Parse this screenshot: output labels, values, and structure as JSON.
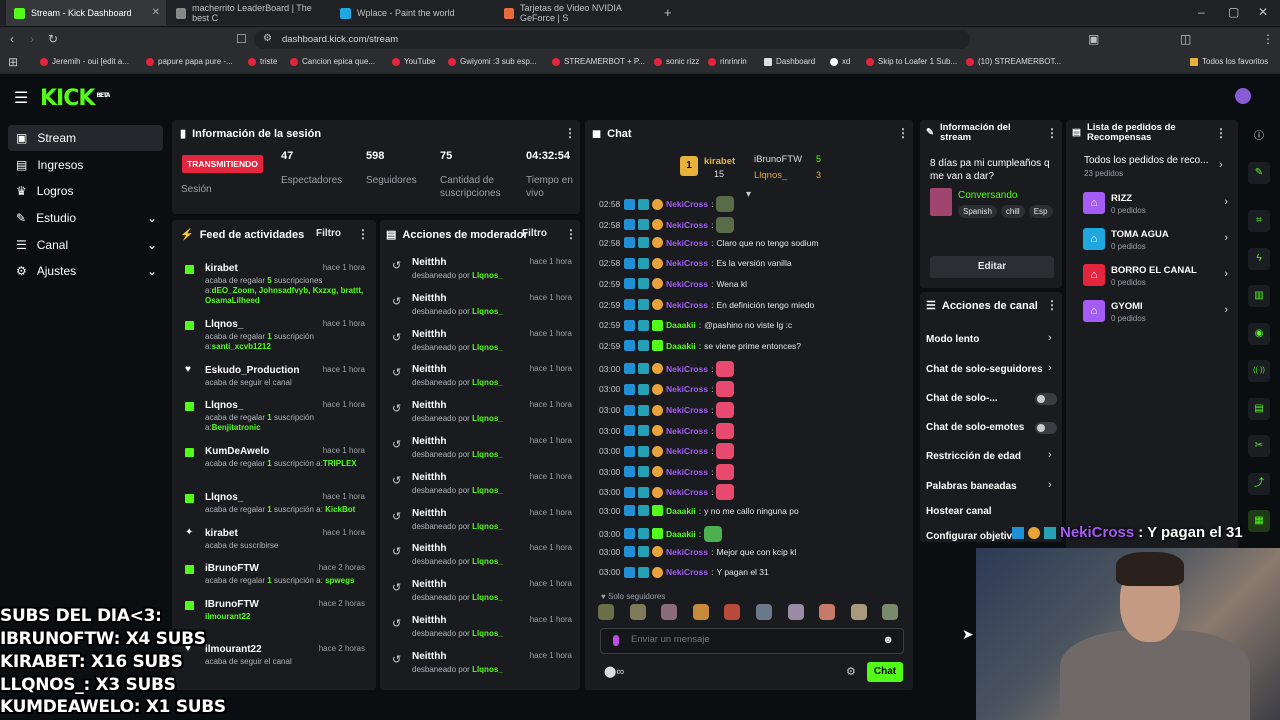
{
  "browser": {
    "tabs": [
      {
        "title": "Stream - Kick Dashboard",
        "active": true
      },
      {
        "title": "macherrito LeaderBoard | The best C",
        "active": false
      },
      {
        "title": "Wplace - Paint the world",
        "active": false
      },
      {
        "title": "Tarjetas de Video NVIDIA GeForce | S",
        "active": false
      }
    ],
    "url": "dashboard.kick.com/stream",
    "bookmarks": [
      "Jeremih - oui [edit a...",
      "papure papa pure -...",
      "triste",
      "Cancion epica que...",
      "YouTube",
      "Gwiyomi :3 sub esp...",
      "STREAMERBOT + P...",
      "sonic rizz",
      "rinrinrin",
      "Dashboard",
      "xd",
      "Skip to Loafer 1 Sub...",
      "(10) STREAMERBOT...",
      "Todos los favoritos"
    ]
  },
  "header": {
    "logo": "KICK",
    "logo_badge": "BETA"
  },
  "sidebar": {
    "items": [
      {
        "label": "Stream",
        "icon": "stream-icon",
        "active": true
      },
      {
        "label": "Ingresos",
        "icon": "revenue-icon"
      },
      {
        "label": "Logros",
        "icon": "trophy-icon"
      },
      {
        "label": "Estudio",
        "icon": "studio-icon",
        "expand": true
      },
      {
        "label": "Canal",
        "icon": "channel-icon",
        "expand": true
      },
      {
        "label": "Ajustes",
        "icon": "settings-icon",
        "expand": true
      }
    ]
  },
  "session": {
    "title": "Información de la sesión",
    "live_badge": "TRANSMITIENDO",
    "live_label": "Sesión",
    "stats": [
      {
        "value": "47",
        "label": "Espectadores"
      },
      {
        "value": "598",
        "label": "Seguidores"
      },
      {
        "value": "75",
        "label": "Cantidad de suscripciones"
      },
      {
        "value": "04:32:54",
        "label": "Tiempo en vivo"
      }
    ]
  },
  "activity": {
    "title": "Feed de actividades",
    "filter": "Filtro",
    "items": [
      {
        "name": "kirabet",
        "time": "hace 1 hora",
        "pre": "acaba de regalar ",
        "hl": "5",
        "post": " suscripciones a:",
        "targets": "dEO_Zoom, Johnsadfvyb, Kxzxg, brattt, OsamaLilheed"
      },
      {
        "name": "Llqnos_",
        "time": "hace 1 hora",
        "pre": "acaba de regalar ",
        "hl": "1",
        "post": " suscripción a:",
        "targets": "santi_xcvb1212"
      },
      {
        "name": "Eskudo_Production",
        "time": "hace 1 hora",
        "pre": "acaba de seguir el canal",
        "hl": "",
        "post": "",
        "targets": ""
      },
      {
        "name": "Llqnos_",
        "time": "hace 1 hora",
        "pre": "acaba de regalar ",
        "hl": "1",
        "post": " suscripción a:",
        "targets": "Benjitatronic"
      },
      {
        "name": "KumDeAwelo",
        "time": "hace 1 hora",
        "pre": "acaba de regalar ",
        "hl": "1",
        "post": " suscripción a:",
        "targets": "TRIPLEX"
      },
      {
        "name": "Llqnos_",
        "time": "hace 1 hora",
        "pre": "acaba de regalar ",
        "hl": "1",
        "post": " suscripción a: ",
        "targets": "KickBot"
      },
      {
        "name": "kirabet",
        "time": "hace 1 hora",
        "pre": "acaba de suscribirse",
        "hl": "",
        "post": "",
        "targets": ""
      },
      {
        "name": "iBrunoFTW",
        "time": "hace 2 horas",
        "pre": "acaba de regalar ",
        "hl": "1",
        "post": " suscripción a: ",
        "targets": "spwegs"
      },
      {
        "name": "IBrunoFTW",
        "time": "hace 2 horas",
        "pre": "",
        "hl": "",
        "post": "",
        "targets": "ilmourant22"
      },
      {
        "name": "ilmourant22",
        "time": "hace 2 horas",
        "pre": "acaba de seguir el canal",
        "hl": "",
        "post": "",
        "targets": ""
      }
    ]
  },
  "moderator": {
    "title": "Acciones de moderador",
    "filter": "Filtro",
    "name": "Neitthh",
    "action": "desbaneado por ",
    "by": "Llqnos_",
    "time": "hace 1 hora",
    "count": 12
  },
  "chat": {
    "title": "Chat",
    "pinned": [
      {
        "name": "kirabet",
        "count": "15"
      },
      {
        "name": "iBrunoFTW",
        "count": "5"
      },
      {
        "name": "Llqnos_",
        "count": "3"
      }
    ],
    "messages": [
      {
        "time": "02:58",
        "user": "NekiCross",
        "color": "#a55bf6",
        "text": "",
        "emote": "frog"
      },
      {
        "time": "02:58",
        "user": "NekiCross",
        "color": "#a55bf6",
        "text": "",
        "emote": "frog"
      },
      {
        "time": "02:58",
        "user": "NekiCross",
        "color": "#a55bf6",
        "text": "Claro que no tengo sodium"
      },
      {
        "time": "02:58",
        "user": "NekiCross",
        "color": "#a55bf6",
        "text": "Es la versión vanilla"
      },
      {
        "time": "02:59",
        "user": "NekiCross",
        "color": "#a55bf6",
        "text": "Wena kl"
      },
      {
        "time": "02:59",
        "user": "NekiCross",
        "color": "#a55bf6",
        "text": "En definición tengo miedo"
      },
      {
        "time": "02:59",
        "user": "Daaakii",
        "color": "#53fc18",
        "text": "@pashino no viste lg :c"
      },
      {
        "time": "02:59",
        "user": "Daaakii",
        "color": "#53fc18",
        "text": "se viene prime entonces?"
      },
      {
        "time": "03:00",
        "user": "NekiCross",
        "color": "#a55bf6",
        "text": "",
        "emote": "heart"
      },
      {
        "time": "03:00",
        "user": "NekiCross",
        "color": "#a55bf6",
        "text": "",
        "emote": "heart"
      },
      {
        "time": "03:00",
        "user": "NekiCross",
        "color": "#a55bf6",
        "text": "",
        "emote": "heart"
      },
      {
        "time": "03:00",
        "user": "NekiCross",
        "color": "#a55bf6",
        "text": "",
        "emote": "heart"
      },
      {
        "time": "03:00",
        "user": "NekiCross",
        "color": "#a55bf6",
        "text": "",
        "emote": "heart"
      },
      {
        "time": "03:00",
        "user": "NekiCross",
        "color": "#a55bf6",
        "text": "",
        "emote": "heart"
      },
      {
        "time": "03:00",
        "user": "NekiCross",
        "color": "#a55bf6",
        "text": "",
        "emote": "heart"
      },
      {
        "time": "03:00",
        "user": "Daaakii",
        "color": "#53fc18",
        "text": "y no me callo ninguna po"
      },
      {
        "time": "03:00",
        "user": "Daaakii",
        "color": "#53fc18",
        "text": "",
        "emote": "pepe"
      },
      {
        "time": "03:00",
        "user": "NekiCross",
        "color": "#a55bf6",
        "text": "Mejor que con kcip kl"
      },
      {
        "time": "03:00",
        "user": "NekiCross",
        "color": "#a55bf6",
        "text": "Y pagan el 31"
      }
    ],
    "followers_only": "Solo seguidores",
    "input_placeholder": "Enviar un mensaje",
    "send_label": "Chat"
  },
  "stream_info": {
    "title": "Información del stream",
    "stream_title": "8 días pa mi cumpleaños q me van a dar?",
    "category": "Conversando",
    "tags": [
      "Spanish",
      "chill",
      "Esp"
    ],
    "edit_label": "Editar"
  },
  "channel_actions": {
    "title": "Acciones de canal",
    "items": [
      {
        "label": "Modo lento",
        "kind": "chevron"
      },
      {
        "label": "Chat de solo-seguidores",
        "kind": "chevron"
      },
      {
        "label": "Chat de solo-...",
        "kind": "toggle"
      },
      {
        "label": "Chat de solo-emotes",
        "kind": "toggle"
      },
      {
        "label": "Restricción de edad",
        "kind": "chevron"
      },
      {
        "label": "Palabras baneadas",
        "kind": "chevron"
      },
      {
        "label": "Hostear canal",
        "kind": "none"
      },
      {
        "label": "Configurar objetivo",
        "kind": "none"
      }
    ]
  },
  "rewards": {
    "title": "Lista de pedidos de Recompensas",
    "all_label": "Todos los pedidos de reco...",
    "all_count": "23 pedidos",
    "items": [
      {
        "name": "RIZZ",
        "count": "0 pedidos",
        "color": "#a55bf6"
      },
      {
        "name": "TOMA AGUA",
        "count": "0 pedidos",
        "color": "#1ea7e1"
      },
      {
        "name": "BORRO EL CANAL",
        "count": "0 pedidos",
        "color": "#e3253d"
      },
      {
        "name": "GYOMI",
        "count": "0 pedidos",
        "color": "#a55bf6"
      }
    ]
  },
  "overlay": {
    "lines": [
      "SUBS DEL DIA<3:",
      "IBRUNOFTW: X4 SUBS",
      "KIRABET: X16 SUBS",
      "LLQNOS_: X3 SUBS",
      "KUMDEAWELO: X1 SUBS"
    ],
    "cam_chat_user": "NekiCross",
    "cam_chat_text": ": Y pagan el 31"
  }
}
